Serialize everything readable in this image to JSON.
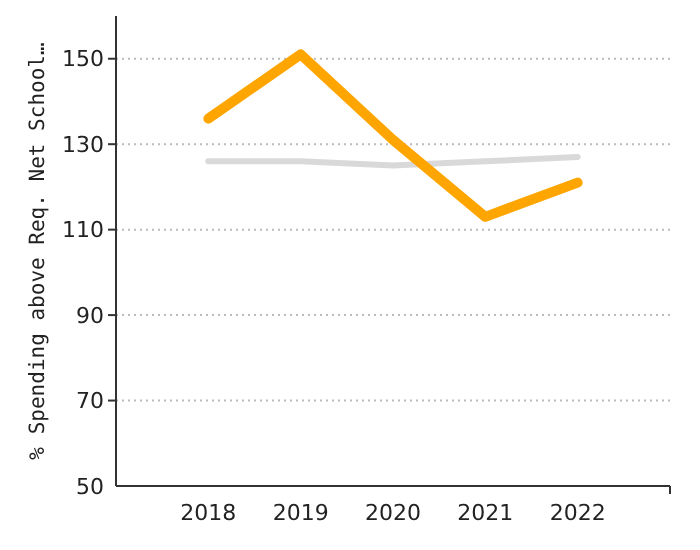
{
  "chart_data": {
    "type": "line",
    "ylabel": "% Spending above Req. Net School…",
    "x": [
      2018,
      2019,
      2020,
      2021,
      2022
    ],
    "xlim": [
      2017,
      2023
    ],
    "xticks": [
      2018,
      2019,
      2020,
      2021,
      2022,
      {
        "value": 2023,
        "label": null
      }
    ],
    "ylim": [
      50,
      160
    ],
    "yticks": [
      50,
      70,
      90,
      110,
      130,
      150
    ],
    "grid": "y",
    "marker": "none",
    "series": [
      {
        "color": "#d9d9d9",
        "values": [
          126,
          126,
          125,
          126,
          127
        ]
      },
      {
        "color": "#ffa500",
        "values": [
          136,
          151,
          131,
          113,
          121
        ]
      }
    ]
  }
}
